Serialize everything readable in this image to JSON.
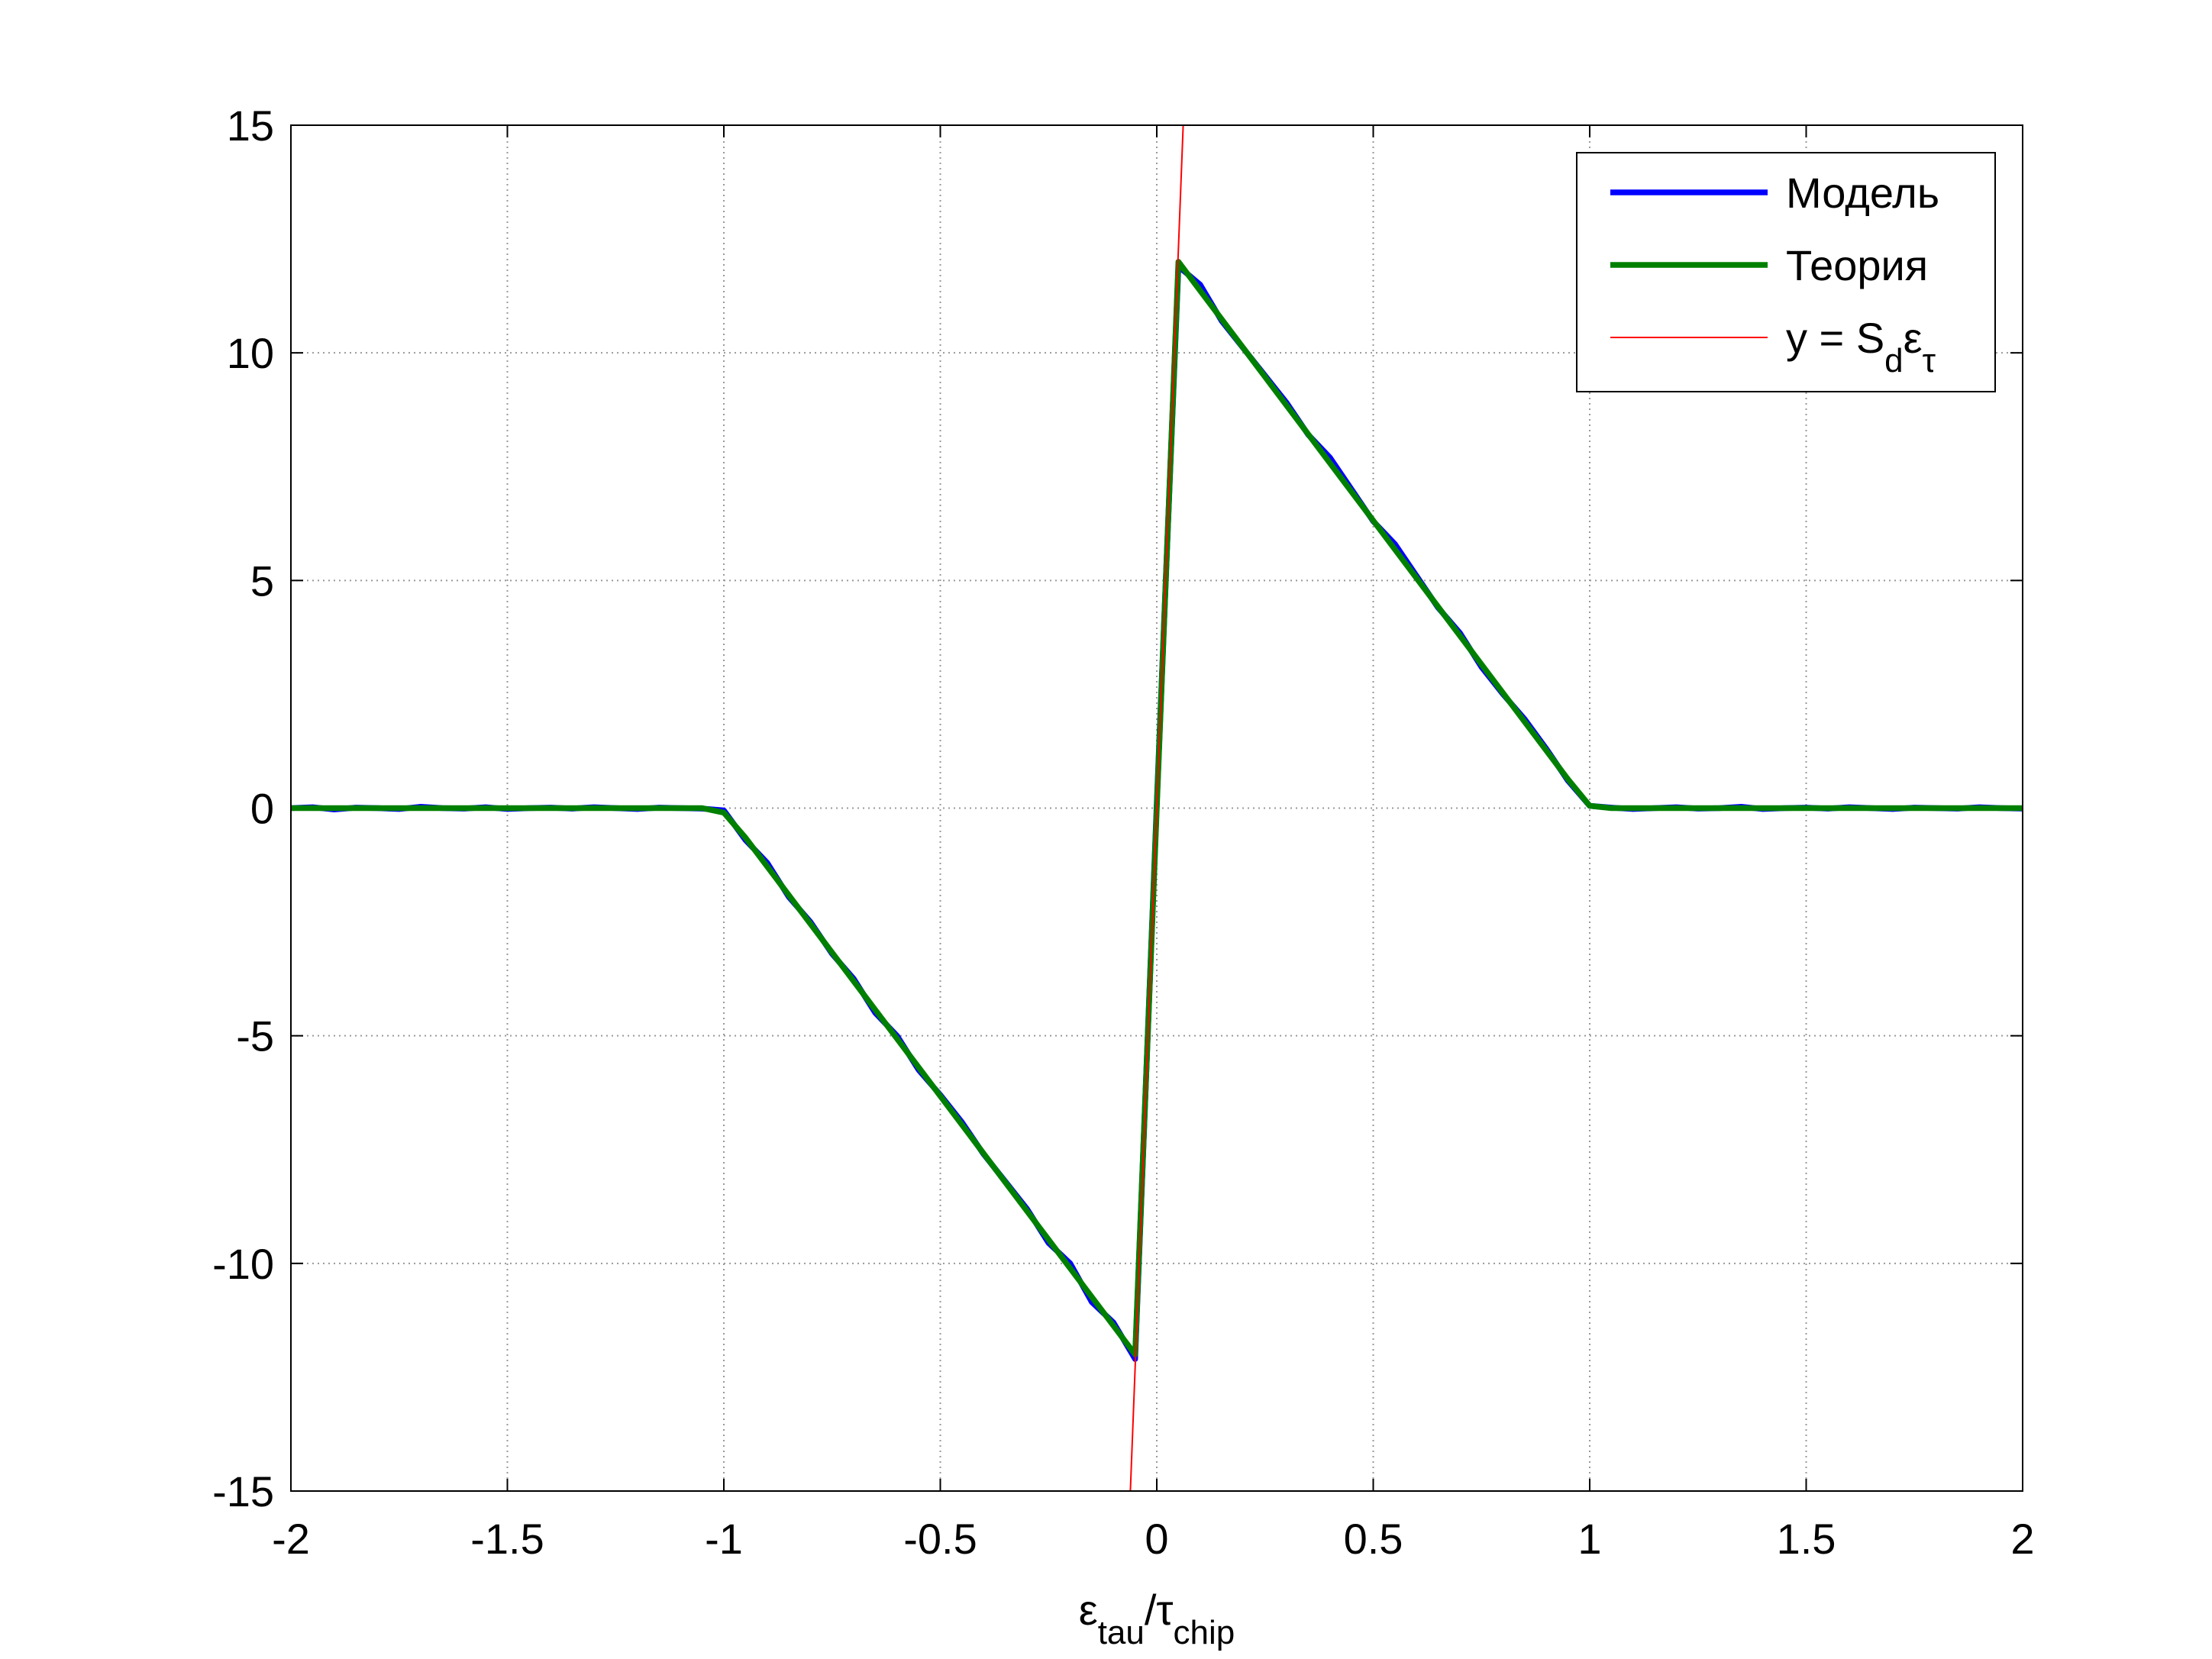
{
  "chart_data": {
    "type": "line",
    "xlabel": [
      {
        "text": "ε"
      },
      {
        "text": "tau",
        "sub": true
      },
      {
        "text": "/τ"
      },
      {
        "text": "chip",
        "sub": true
      }
    ],
    "xlim": [
      -2,
      2
    ],
    "xticks": [
      -2,
      -1.5,
      -1,
      -0.5,
      0,
      0.5,
      1,
      1.5,
      2
    ],
    "ylim": [
      -15,
      15
    ],
    "yticks": [
      -15,
      -10,
      -5,
      0,
      5,
      10,
      15
    ],
    "grid": true,
    "legend": "upper right",
    "series": [
      {
        "name": "Модель",
        "color": "#0000ff",
        "width": 7.5,
        "x": [
          -2,
          -1.95,
          -1.9,
          -1.85,
          -1.8,
          -1.75,
          -1.7,
          -1.65,
          -1.6,
          -1.55,
          -1.5,
          -1.45,
          -1.4,
          -1.35,
          -1.3,
          -1.25,
          -1.2,
          -1.15,
          -1.1,
          -1.05,
          -1,
          -0.95,
          -0.9,
          -0.85,
          -0.8,
          -0.75,
          -0.7,
          -0.65,
          -0.6,
          -0.55,
          -0.5,
          -0.45,
          -0.4,
          -0.35,
          -0.3,
          -0.25,
          -0.2,
          -0.15,
          -0.1,
          -0.05,
          0,
          0.05,
          0.1,
          0.15,
          0.2,
          0.25,
          0.3,
          0.35,
          0.4,
          0.45,
          0.5,
          0.55,
          0.6,
          0.65,
          0.7,
          0.75,
          0.8,
          0.85,
          0.9,
          0.95,
          1,
          1.05,
          1.1,
          1.15,
          1.2,
          1.25,
          1.3,
          1.35,
          1.4,
          1.45,
          1.5,
          1.55,
          1.6,
          1.65,
          1.7,
          1.75,
          1.8,
          1.85,
          1.9,
          1.95,
          2
        ],
        "values": [
          0,
          0.02,
          -0.03,
          0.01,
          0,
          -0.02,
          0.03,
          0,
          -0.01,
          0.02,
          -0.02,
          0,
          0.01,
          -0.01,
          0.02,
          0,
          -0.02,
          0.01,
          0,
          -0.01,
          -0.05,
          -0.7,
          -1.2,
          -1.95,
          -2.5,
          -3.2,
          -3.75,
          -4.5,
          -5,
          -5.75,
          -6.3,
          -6.9,
          -7.6,
          -8.2,
          -8.8,
          -9.55,
          -10,
          -10.85,
          -11.3,
          -12.1,
          0.1,
          11.9,
          11.5,
          10.7,
          10.1,
          9.5,
          8.9,
          8.2,
          7.7,
          7,
          6.3,
          5.8,
          5.1,
          4.4,
          3.85,
          3.1,
          2.5,
          1.95,
          1.3,
          0.6,
          0.05,
          0.01,
          -0.02,
          0,
          0.02,
          -0.01,
          0,
          0.03,
          -0.02,
          0,
          0.01,
          -0.01,
          0.02,
          0,
          -0.02,
          0.01,
          0,
          -0.01,
          0.02,
          0,
          -0.01
        ]
      },
      {
        "name": "Теория",
        "color": "#008000",
        "width": 7.5,
        "x": [
          -2,
          -1.05,
          -1,
          -0.95,
          -0.05,
          0.05,
          0.95,
          1,
          1.05,
          2
        ],
        "values": [
          0,
          0,
          -0.1,
          -0.65,
          -12,
          12,
          0.63,
          0.05,
          0,
          0
        ]
      },
      {
        "name": [
          {
            "text": "y = S"
          },
          {
            "text": "d",
            "sub": true
          },
          {
            "text": "ε"
          },
          {
            "text": "τ",
            "sub": true
          }
        ],
        "color": "#ff0000",
        "width": 2,
        "x": [
          -0.061,
          0.061
        ],
        "values": [
          -15,
          15
        ]
      }
    ]
  }
}
